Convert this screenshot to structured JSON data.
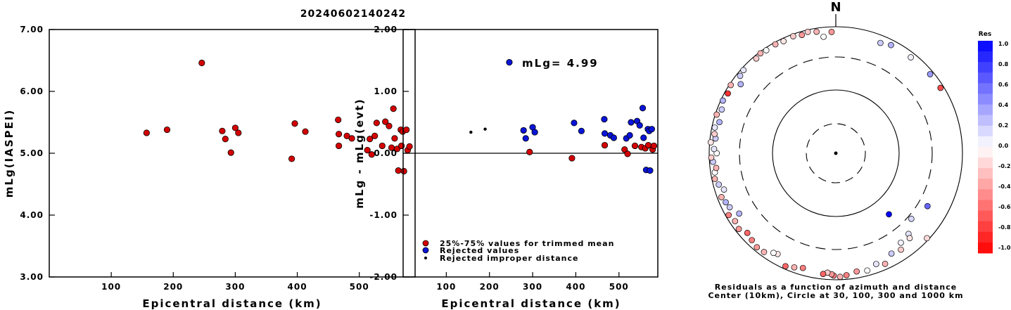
{
  "title": "20240602140242",
  "colors": {
    "red": "#d40000",
    "blue": "#0a14d8",
    "black": "#000000"
  },
  "left_plot": {
    "ylabel": "mLg(IASPEI)",
    "xlabel": "Epicentral distance (km)",
    "y_ticks": [
      "7.00",
      "6.00",
      "5.00",
      "4.00",
      "3.00"
    ],
    "x_ticks": [
      "100",
      "200",
      "300",
      "400",
      "500"
    ]
  },
  "middle_plot": {
    "ylabel": "mLg - mLg(evt)",
    "xlabel": "Epicentral distance (km)",
    "y_ticks": [
      "2.00",
      "1.00",
      "0.00",
      "-1.00",
      "-2.00"
    ],
    "x_ticks": [
      "100",
      "200",
      "300",
      "400",
      "500"
    ],
    "annotation": "mLg= 4.99",
    "legend": [
      {
        "label": "25%-75% values for trimmed mean",
        "marker": "red"
      },
      {
        "label": "Rejected values",
        "marker": "blue"
      },
      {
        "label": "Rejected improper distance",
        "marker": "black"
      }
    ]
  },
  "polar_plot": {
    "north_label": "N",
    "caption_line1": "Residuals as a function of azimuth and distance",
    "caption_line2": "Center (10km), Circle at 30, 100, 300 and 1000 km"
  },
  "colorbar": {
    "title": "Res",
    "ticks": [
      "1.0",
      "0.8",
      "0.6",
      "0.4",
      "0.2",
      "0.0",
      "-0.2",
      "-0.4",
      "-0.6",
      "-0.8",
      "-1.0"
    ]
  },
  "chart_data": [
    {
      "type": "scatter",
      "ylabel": "mLg(IASPEI)",
      "xlabel": "Epicentral distance (km)",
      "xlim": [
        0,
        590
      ],
      "ylim": [
        3,
        7
      ],
      "series": [
        {
          "name": "25%-75% values for trimmed mean",
          "color": "red",
          "points": [
            [
              157,
              5.33
            ],
            [
              190,
              5.38
            ],
            [
              246,
              6.46
            ],
            [
              279,
              5.36
            ],
            [
              284,
              5.23
            ],
            [
              293,
              5.01
            ],
            [
              300,
              5.41
            ],
            [
              305,
              5.33
            ],
            [
              391,
              4.91
            ],
            [
              396,
              5.48
            ],
            [
              413,
              5.35
            ],
            [
              466,
              5.54
            ],
            [
              467,
              5.31
            ],
            [
              467,
              5.12
            ],
            [
              480,
              5.28
            ],
            [
              488,
              5.24
            ],
            [
              513,
              5.05
            ],
            [
              517,
              5.23
            ],
            [
              520,
              4.98
            ],
            [
              525,
              5.28
            ],
            [
              528,
              5.49
            ],
            [
              537,
              5.12
            ],
            [
              542,
              5.51
            ],
            [
              548,
              5.44
            ],
            [
              552,
              5.09
            ],
            [
              555,
              5.72
            ],
            [
              557,
              5.24
            ],
            [
              561,
              5.07
            ],
            [
              563,
              4.72
            ],
            [
              567,
              5.38
            ],
            [
              568,
              5.12
            ],
            [
              570,
              5.35
            ],
            [
              572,
              4.71
            ],
            [
              576,
              5.38
            ],
            [
              578,
              5.05
            ],
            [
              581,
              5.11
            ]
          ]
        }
      ]
    },
    {
      "type": "scatter",
      "ylabel": "mLg - mLg(evt)",
      "xlabel": "Epicentral distance (km)",
      "xlim": [
        0,
        590
      ],
      "ylim": [
        -2,
        2
      ],
      "annotation": "mLg= 4.99",
      "series": [
        {
          "name": "25%-75% values for trimmed mean",
          "color": "red",
          "points": [
            [
              293,
              0.02
            ],
            [
              391,
              -0.08
            ],
            [
              467,
              0.13
            ],
            [
              513,
              0.06
            ],
            [
              520,
              -0.01
            ],
            [
              537,
              0.12
            ],
            [
              552,
              0.1
            ],
            [
              561,
              0.08
            ],
            [
              568,
              0.13
            ],
            [
              578,
              0.06
            ],
            [
              581,
              0.12
            ]
          ]
        },
        {
          "name": "Rejected values",
          "color": "blue",
          "points": [
            [
              246,
              1.47
            ],
            [
              279,
              0.37
            ],
            [
              284,
              0.24
            ],
            [
              300,
              0.42
            ],
            [
              305,
              0.34
            ],
            [
              396,
              0.49
            ],
            [
              413,
              0.36
            ],
            [
              466,
              0.55
            ],
            [
              467,
              0.32
            ],
            [
              480,
              0.29
            ],
            [
              488,
              0.25
            ],
            [
              517,
              0.24
            ],
            [
              525,
              0.29
            ],
            [
              528,
              0.5
            ],
            [
              542,
              0.52
            ],
            [
              548,
              0.45
            ],
            [
              555,
              0.73
            ],
            [
              557,
              0.25
            ],
            [
              563,
              -0.27
            ],
            [
              567,
              0.39
            ],
            [
              570,
              0.36
            ],
            [
              572,
              -0.28
            ],
            [
              576,
              0.39
            ]
          ]
        },
        {
          "name": "Rejected improper distance",
          "color": "black",
          "points": [
            [
              157,
              0.34
            ],
            [
              190,
              0.39
            ]
          ]
        }
      ]
    },
    {
      "type": "scatter",
      "coordinate_system": "polar azimuth/log-distance",
      "rings_km": [
        30,
        100,
        300,
        1000
      ],
      "center_km": 10,
      "color_scale": [
        -1,
        1
      ],
      "points_azimuth_deg_distance_km_residual": [
        [
          22,
          760,
          0.2
        ],
        [
          27,
          830,
          0.3
        ],
        [
          38,
          840,
          0.05
        ],
        [
          50,
          880,
          0.4
        ],
        [
          58,
          890,
          -0.7
        ],
        [
          120,
          470,
          0.6
        ],
        [
          131,
          380,
          0.15
        ],
        [
          133,
          930,
          -0.15
        ],
        [
          138,
          520,
          0.1
        ],
        [
          139,
          600,
          -0.1
        ],
        [
          144,
          560,
          0.05
        ],
        [
          146,
          690,
          -0.2
        ],
        [
          151,
          650,
          0.2
        ],
        [
          156,
          820,
          -0.3
        ],
        [
          160,
          730,
          0.1
        ],
        [
          165,
          830,
          0.0
        ],
        [
          170,
          790,
          -0.4
        ],
        [
          175,
          860,
          -0.5
        ],
        [
          178,
          900,
          -0.3
        ],
        [
          181,
          860,
          -0.5
        ],
        [
          182,
          820,
          -0.4
        ],
        [
          184,
          780,
          -0.2
        ],
        [
          186,
          830,
          -0.6
        ],
        [
          196,
          770,
          -0.5
        ],
        [
          200,
          830,
          -0.3
        ],
        [
          204,
          900,
          -0.6
        ],
        [
          210,
          690,
          -0.1
        ],
        [
          212,
          720,
          0.0
        ],
        [
          216,
          850,
          -0.3
        ],
        [
          220,
          870,
          -0.4
        ],
        [
          224,
          810,
          -0.5
        ],
        [
          228,
          760,
          -0.6
        ],
        [
          232,
          880,
          -0.4
        ],
        [
          236,
          830,
          -0.3
        ],
        [
          238,
          630,
          0.3
        ],
        [
          240,
          900,
          -0.5
        ],
        [
          243,
          760,
          0.2
        ],
        [
          246,
          800,
          0.3
        ],
        [
          249,
          860,
          -0.3
        ],
        [
          252,
          720,
          0.1
        ],
        [
          255,
          820,
          0.2
        ],
        [
          258,
          900,
          -0.3
        ],
        [
          261,
          860,
          0.0
        ],
        [
          263,
          800,
          -0.3
        ],
        [
          266,
          880,
          0.2
        ],
        [
          268,
          930,
          -0.2
        ],
        [
          270,
          760,
          0.0
        ],
        [
          272,
          840,
          0.1
        ],
        [
          275,
          960,
          -0.1
        ],
        [
          277,
          820,
          0.2
        ],
        [
          279,
          870,
          -0.2
        ],
        [
          282,
          900,
          0.1
        ],
        [
          285,
          800,
          0.3
        ],
        [
          288,
          950,
          -0.3
        ],
        [
          291,
          850,
          0.2
        ],
        [
          295,
          930,
          0.3
        ],
        [
          299,
          890,
          -0.8
        ],
        [
          303,
          950,
          -0.3
        ],
        [
          306,
          720,
          0.3
        ],
        [
          309,
          880,
          0.2
        ],
        [
          312,
          920,
          0.1
        ],
        [
          320,
          900,
          -0.2
        ],
        [
          323,
          950,
          -0.3
        ],
        [
          326,
          920,
          0.0
        ],
        [
          331,
          930,
          -0.3
        ],
        [
          335,
          900,
          -0.1
        ],
        [
          340,
          930,
          -0.2
        ],
        [
          344,
          880,
          -0.4
        ],
        [
          347,
          930,
          -0.2
        ],
        [
          351,
          880,
          -0.3
        ],
        [
          354,
          710,
          0.0
        ],
        [
          358,
          830,
          -0.4
        ],
        [
          139,
          190,
          1.0
        ]
      ]
    }
  ]
}
